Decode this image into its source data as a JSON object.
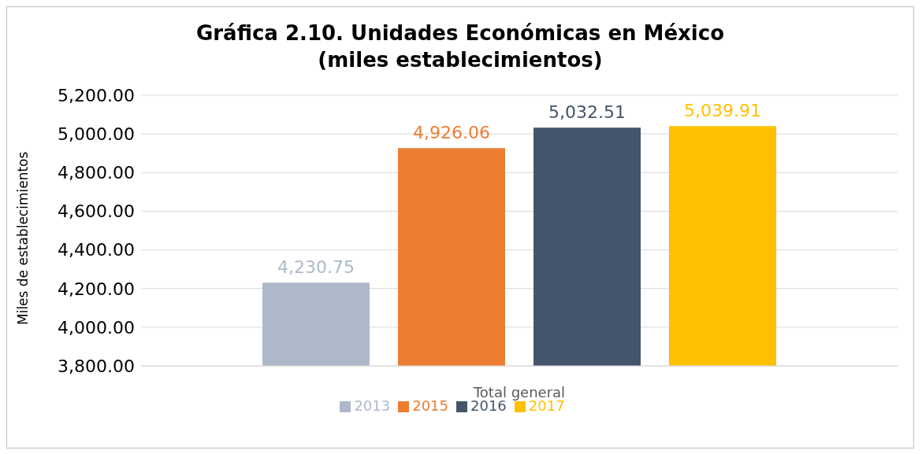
{
  "chart_data": {
    "type": "bar",
    "title": "Gráfica 2.10. Unidades Económicas en México",
    "subtitle": "(miles establecimientos)",
    "xlabel": "Total general",
    "ylabel": "Miles de establecimientos",
    "categories": [
      null
    ],
    "series": [
      {
        "name": "2013",
        "color": "#adb9ca",
        "values": [
          4230.75
        ],
        "value_labels": [
          "4,230.75"
        ]
      },
      {
        "name": "2015",
        "color": "#ed7d31",
        "values": [
          4926.06
        ],
        "value_labels": [
          "4,926.06"
        ]
      },
      {
        "name": "2016",
        "color": "#44546a",
        "values": [
          5032.51
        ],
        "value_labels": [
          "5,032.51"
        ]
      },
      {
        "name": "2017",
        "color": "#ffc000",
        "values": [
          5039.91
        ],
        "value_labels": [
          "5,039.91"
        ]
      }
    ],
    "ylim": [
      3800,
      5200
    ],
    "yticks": [
      {
        "value": 3800,
        "label": "3,800.00"
      },
      {
        "value": 4000,
        "label": "4,000.00"
      },
      {
        "value": 4200,
        "label": "4,200.00"
      },
      {
        "value": 4400,
        "label": "4,400.00"
      },
      {
        "value": 4600,
        "label": "4,600.00"
      },
      {
        "value": 4800,
        "label": "4,800.00"
      },
      {
        "value": 5000,
        "label": "5,000.00"
      },
      {
        "value": 5200,
        "label": "5,200.00"
      }
    ],
    "grid": "y",
    "legend": "bottom"
  }
}
